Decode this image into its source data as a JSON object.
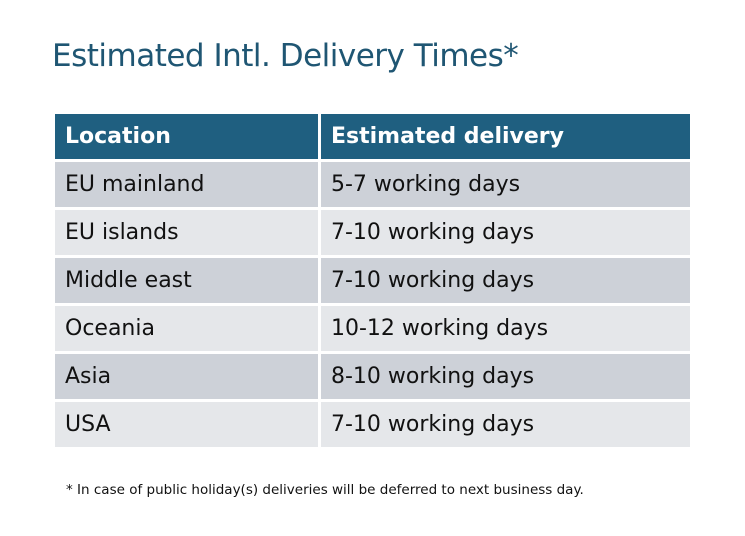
{
  "title": "Estimated Intl. Delivery Times*",
  "table": {
    "headers": [
      "Location",
      "Estimated delivery"
    ],
    "rows": [
      [
        "EU mainland",
        "5-7 working days"
      ],
      [
        "EU islands",
        "7-10 working days"
      ],
      [
        "Middle east",
        "7-10 working days"
      ],
      [
        "Oceania",
        "10-12 working days"
      ],
      [
        "Asia",
        "8-10 working days"
      ],
      [
        "USA",
        "7-10 working days"
      ]
    ]
  },
  "footnote": "* In case of public holiday(s) deliveries will be deferred to next business day.",
  "colors": {
    "title": "#1F5673",
    "header_bg": "#1F5F80",
    "row_odd": "#CDD1D8",
    "row_even": "#E5E7EA"
  }
}
